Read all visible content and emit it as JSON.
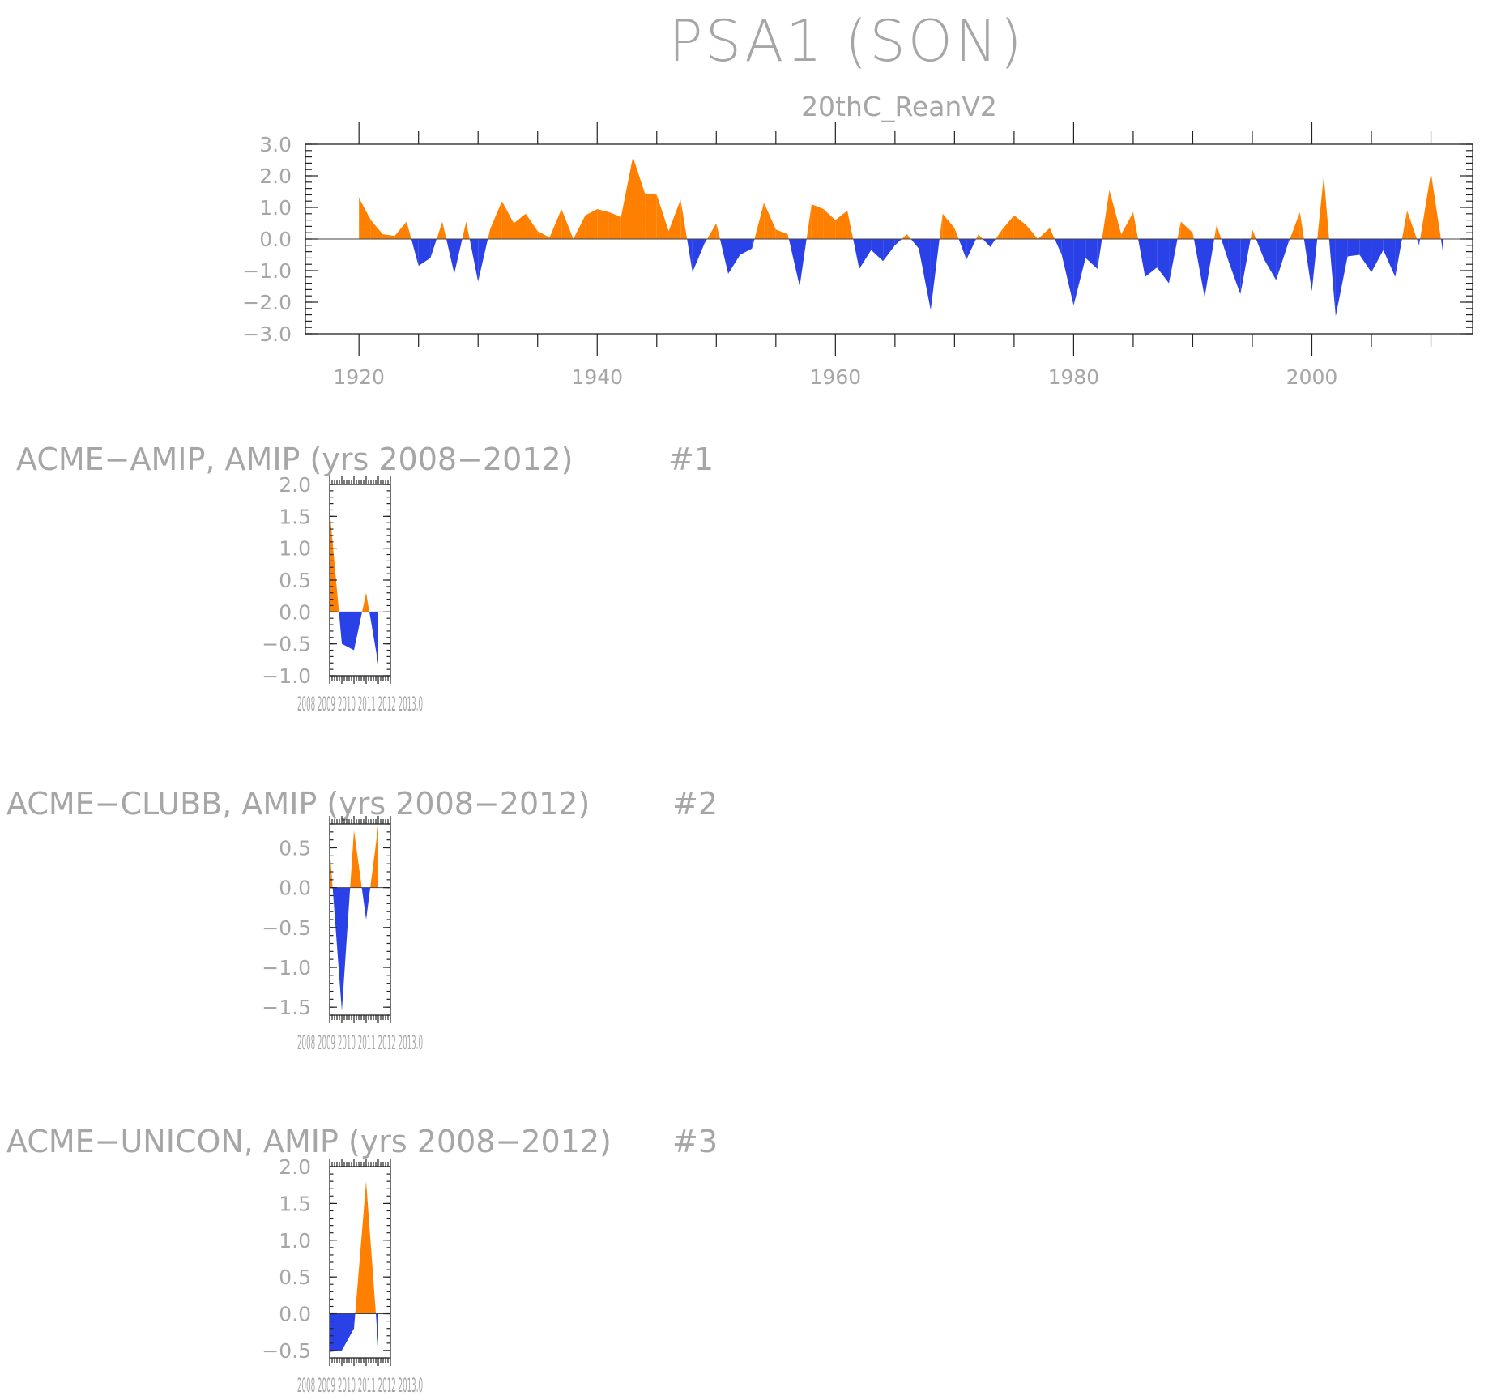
{
  "title": "PSA1 (SON)",
  "colors": {
    "positive": "#ff8000",
    "negative": "#2a41e8",
    "axis": "#222222",
    "text": "#a6a6a6"
  },
  "chart_data": [
    {
      "type": "area",
      "subtitle": "20thC_ReanV2",
      "x": [
        1920,
        1921,
        1922,
        1923,
        1924,
        1925,
        1926,
        1927,
        1928,
        1929,
        1930,
        1931,
        1932,
        1933,
        1934,
        1935,
        1936,
        1937,
        1938,
        1939,
        1940,
        1941,
        1942,
        1943,
        1944,
        1945,
        1946,
        1947,
        1948,
        1949,
        1950,
        1951,
        1952,
        1953,
        1954,
        1955,
        1956,
        1957,
        1958,
        1959,
        1960,
        1961,
        1962,
        1963,
        1964,
        1965,
        1966,
        1967,
        1968,
        1969,
        1970,
        1971,
        1972,
        1973,
        1974,
        1975,
        1976,
        1977,
        1978,
        1979,
        1980,
        1981,
        1982,
        1983,
        1984,
        1985,
        1986,
        1987,
        1988,
        1989,
        1990,
        1991,
        1992,
        1993,
        1994,
        1995,
        1996,
        1997,
        1998,
        1999,
        2000,
        2001,
        2002,
        2003,
        2004,
        2005,
        2006,
        2007,
        2008,
        2009,
        2010,
        2011
      ],
      "values": [
        1.3,
        0.6,
        0.15,
        0.1,
        0.55,
        -0.85,
        -0.6,
        0.55,
        -1.1,
        0.55,
        -1.35,
        0.3,
        1.2,
        0.5,
        0.8,
        0.25,
        0.05,
        0.95,
        0.0,
        0.75,
        0.95,
        0.85,
        0.7,
        2.6,
        1.45,
        1.4,
        0.25,
        1.25,
        -1.05,
        -0.15,
        0.5,
        -1.1,
        -0.5,
        -0.3,
        1.15,
        0.3,
        0.15,
        -1.5,
        1.1,
        0.95,
        0.6,
        0.9,
        -0.95,
        -0.35,
        -0.7,
        -0.2,
        0.15,
        -0.3,
        -2.25,
        0.8,
        0.35,
        -0.65,
        0.15,
        -0.25,
        0.3,
        0.75,
        0.45,
        0.0,
        0.35,
        -0.5,
        -2.1,
        -0.6,
        -0.95,
        1.55,
        0.15,
        0.85,
        -1.2,
        -0.9,
        -1.4,
        0.55,
        0.2,
        -1.85,
        0.45,
        -0.7,
        -1.75,
        0.3,
        -0.65,
        -1.3,
        -0.15,
        0.85,
        -1.65,
        2.0,
        -2.45,
        -0.55,
        -0.5,
        -1.05,
        -0.35,
        -1.2,
        0.9,
        -0.2,
        2.1,
        -0.4
      ],
      "xlim": [
        1915.5,
        2013.5
      ],
      "ylim": [
        -3.0,
        3.0
      ],
      "xticks": [
        "1920",
        "1940",
        "1960",
        "1980",
        "2000"
      ],
      "yticks": [
        "3.0",
        "2.0",
        "1.0",
        "0.0",
        "−1.0",
        "−2.0",
        "−3.0"
      ]
    },
    {
      "type": "area",
      "title": "ACME−AMIP, AMIP (yrs 2008−2012)",
      "number": "#1",
      "x": [
        2008,
        2009,
        2010,
        2011,
        2012
      ],
      "values": [
        1.6,
        -0.5,
        -0.6,
        0.3,
        -0.82
      ],
      "xlim": [
        2008,
        2013
      ],
      "ylim": [
        -1.0,
        2.0
      ],
      "yticks": [
        "2.0",
        "1.5",
        "1.0",
        "0.5",
        "0.0",
        "−0.5",
        "−1.0"
      ],
      "xtick_label": "2008 2009 2010 2011 2012 2013.0"
    },
    {
      "type": "area",
      "title": "ACME−CLUBB, AMIP (yrs 2008−2012)",
      "number": "#2",
      "x": [
        2008,
        2009,
        2010,
        2011,
        2012
      ],
      "values": [
        0.5,
        -1.55,
        0.72,
        -0.4,
        0.78
      ],
      "xlim": [
        2008,
        2013
      ],
      "ylim": [
        -1.6,
        0.8
      ],
      "yticks": [
        "0.5",
        "0.0",
        "−0.5",
        "−1.0",
        "−1.5"
      ],
      "xtick_label": "2008 2009 2010 2011 2012 2013.0"
    },
    {
      "type": "area",
      "title": "ACME−UNICON, AMIP (yrs 2008−2012)",
      "number": "#3",
      "x": [
        2008,
        2009,
        2010,
        2011,
        2012
      ],
      "values": [
        -0.52,
        -0.5,
        -0.2,
        1.8,
        -0.45
      ],
      "xlim": [
        2008,
        2013
      ],
      "ylim": [
        -0.6,
        2.0
      ],
      "yticks": [
        "2.0",
        "1.5",
        "1.0",
        "0.5",
        "0.0",
        "−0.5"
      ],
      "xtick_label": "2008 2009 2010 2011 2012 2013.0"
    }
  ]
}
